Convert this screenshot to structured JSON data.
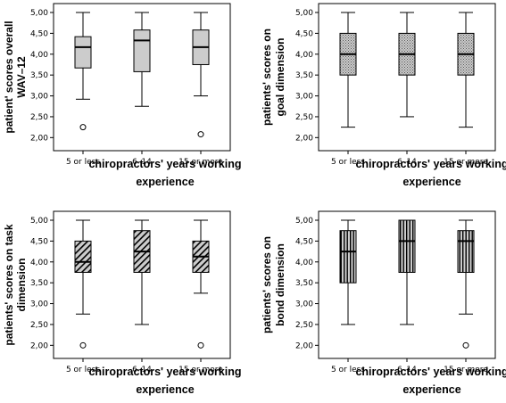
{
  "chart_data": [
    {
      "type": "box",
      "ylabel": "patient' scores overall WAV-12",
      "xlabel": "chiropractors' years working experience",
      "categories": [
        "5 or less",
        "6-14",
        "15 or more"
      ],
      "ylim": [
        1.9,
        5.0
      ],
      "yticks": [
        "2,00",
        "2,50",
        "3,00",
        "3,50",
        "4,00",
        "4,50",
        "5,00"
      ],
      "fill": "plain",
      "boxes": [
        {
          "min": 2.92,
          "q1": 3.67,
          "median": 4.17,
          "q3": 4.42,
          "max": 5.0,
          "outliers": [
            2.25
          ]
        },
        {
          "min": 2.75,
          "q1": 3.58,
          "median": 4.33,
          "q3": 4.58,
          "max": 5.0,
          "outliers": []
        },
        {
          "min": 3.0,
          "q1": 3.75,
          "median": 4.17,
          "q3": 4.58,
          "max": 5.0,
          "outliers": [
            2.08
          ]
        }
      ]
    },
    {
      "type": "box",
      "ylabel": "patients' scores on goal dimension",
      "xlabel": "chiropractors' years working experience",
      "categories": [
        "5 or less",
        "6-14",
        "15 or more"
      ],
      "ylim": [
        1.9,
        5.0
      ],
      "yticks": [
        "2,00",
        "2,50",
        "3,00",
        "3,50",
        "4,00",
        "4,50",
        "5,00"
      ],
      "fill": "dots",
      "boxes": [
        {
          "min": 2.25,
          "q1": 3.5,
          "median": 4.0,
          "q3": 4.5,
          "max": 5.0,
          "outliers": []
        },
        {
          "min": 2.5,
          "q1": 3.5,
          "median": 4.0,
          "q3": 4.5,
          "max": 5.0,
          "outliers": []
        },
        {
          "min": 2.25,
          "q1": 3.5,
          "median": 4.0,
          "q3": 4.5,
          "max": 5.0,
          "outliers": []
        }
      ]
    },
    {
      "type": "box",
      "ylabel": "patients' scores on task dimension",
      "xlabel": "chiropractors' years working experience",
      "categories": [
        "5 or less",
        "6-14",
        "15 or more"
      ],
      "ylim": [
        1.9,
        5.0
      ],
      "yticks": [
        "2,00",
        "2,50",
        "3,00",
        "3,50",
        "4,00",
        "4,50",
        "5,00"
      ],
      "fill": "diagonal",
      "boxes": [
        {
          "min": 2.75,
          "q1": 3.75,
          "median": 4.0,
          "q3": 4.5,
          "max": 5.0,
          "outliers": [
            2.0
          ]
        },
        {
          "min": 2.5,
          "q1": 3.75,
          "median": 4.25,
          "q3": 4.75,
          "max": 5.0,
          "outliers": []
        },
        {
          "min": 3.25,
          "q1": 3.75,
          "median": 4.13,
          "q3": 4.5,
          "max": 5.0,
          "outliers": [
            2.0
          ]
        }
      ]
    },
    {
      "type": "box",
      "ylabel": "patients' scores on bond dimension",
      "xlabel": "chiropractors' years working experience",
      "categories": [
        "5 or less",
        "6-14",
        "15 or more"
      ],
      "ylim": [
        1.9,
        5.0
      ],
      "yticks": [
        "2,00",
        "2,50",
        "3,00",
        "3,50",
        "4,00",
        "4,50",
        "5,00"
      ],
      "fill": "vertical",
      "boxes": [
        {
          "min": 2.5,
          "q1": 3.5,
          "median": 4.25,
          "q3": 4.75,
          "max": 5.0,
          "outliers": []
        },
        {
          "min": 2.5,
          "q1": 3.75,
          "median": 4.5,
          "q3": 5.0,
          "max": 5.0,
          "outliers": []
        },
        {
          "min": 2.75,
          "q1": 3.75,
          "median": 4.5,
          "q3": 4.75,
          "max": 5.0,
          "outliers": [
            2.0
          ]
        }
      ]
    }
  ],
  "colors": {
    "box_fill": "#cccccc",
    "line": "#000000",
    "background": "#ffffff"
  }
}
